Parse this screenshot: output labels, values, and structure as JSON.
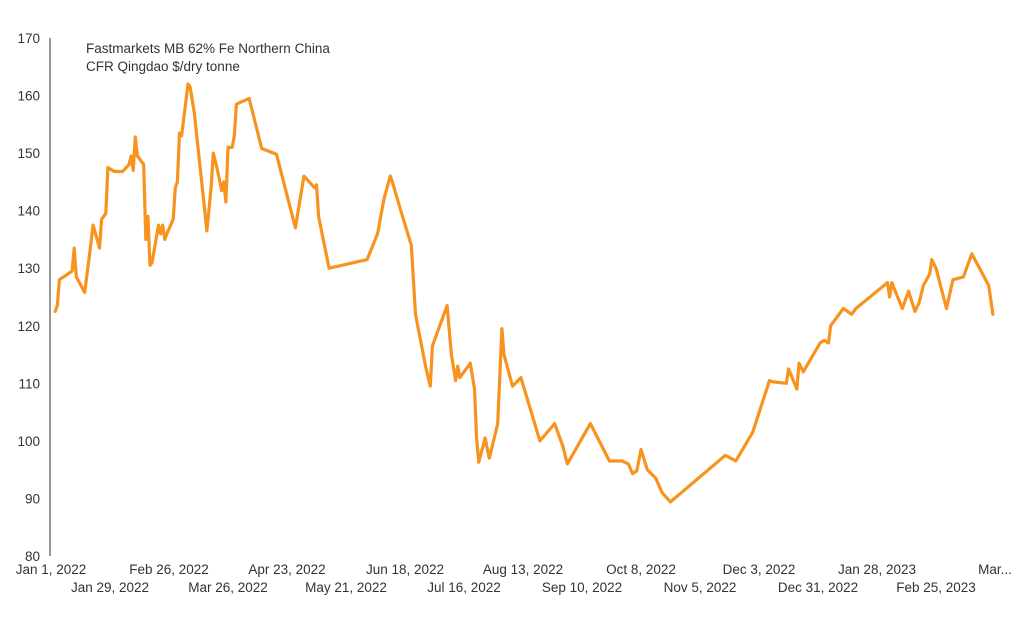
{
  "chart_data": {
    "type": "line",
    "title": "",
    "xlabel": "",
    "ylabel": "",
    "ylim": [
      80,
      170
    ],
    "yticks": [
      80,
      90,
      100,
      110,
      120,
      130,
      140,
      150,
      160,
      170
    ],
    "xlim": [
      "2022-01-01",
      "2023-03-25"
    ],
    "grid": false,
    "legend": {
      "position": "top-left",
      "line1": "Fastmarkets MB 62% Fe Northern China",
      "line2": "CFR Qingdao $/dry tonne"
    },
    "xtick_labels": [
      {
        "date": "2022-01-01",
        "label": "Jan 1, 2022"
      },
      {
        "date": "2022-01-29",
        "label": "Jan 29, 2022"
      },
      {
        "date": "2022-02-26",
        "label": "Feb 26, 2022"
      },
      {
        "date": "2022-03-26",
        "label": "Mar 26, 2022"
      },
      {
        "date": "2022-04-23",
        "label": "Apr 23, 2022"
      },
      {
        "date": "2022-05-21",
        "label": "May 21, 2022"
      },
      {
        "date": "2022-06-18",
        "label": "Jun 18, 2022"
      },
      {
        "date": "2022-07-16",
        "label": "Jul 16, 2022"
      },
      {
        "date": "2022-08-13",
        "label": "Aug 13, 2022"
      },
      {
        "date": "2022-09-10",
        "label": "Sep 10, 2022"
      },
      {
        "date": "2022-10-08",
        "label": "Oct 8, 2022"
      },
      {
        "date": "2022-11-05",
        "label": "Nov 5, 2022"
      },
      {
        "date": "2022-12-03",
        "label": "Dec 3, 2022"
      },
      {
        "date": "2022-12-31",
        "label": "Dec 31, 2022"
      },
      {
        "date": "2023-01-28",
        "label": "Jan 28, 2023"
      },
      {
        "date": "2023-02-25",
        "label": "Feb 25, 2023"
      },
      {
        "date": "2023-03-25",
        "label": "Mar..."
      }
    ],
    "series": [
      {
        "name": "Fastmarkets MB 62% Fe Northern China CFR Qingdao $/dry tonne",
        "color": "#f7931e",
        "points": [
          [
            "2022-01-03",
            122.5
          ],
          [
            "2022-01-04",
            123.5
          ],
          [
            "2022-01-05",
            128.0
          ],
          [
            "2022-01-09",
            129.0
          ],
          [
            "2022-01-11",
            129.5
          ],
          [
            "2022-01-12",
            133.5
          ],
          [
            "2022-01-13",
            128.5
          ],
          [
            "2022-01-17",
            125.8
          ],
          [
            "2022-01-19",
            131.5
          ],
          [
            "2022-01-21",
            137.5
          ],
          [
            "2022-01-24",
            133.5
          ],
          [
            "2022-01-25",
            138.5
          ],
          [
            "2022-01-27",
            139.5
          ],
          [
            "2022-01-28",
            147.5
          ],
          [
            "2022-01-31",
            146.8
          ],
          [
            "2022-02-04",
            146.8
          ],
          [
            "2022-02-07",
            148.0
          ],
          [
            "2022-02-08",
            149.5
          ],
          [
            "2022-02-09",
            147.0
          ],
          [
            "2022-02-10",
            152.8
          ],
          [
            "2022-02-11",
            149.5
          ],
          [
            "2022-02-14",
            148.0
          ],
          [
            "2022-02-15",
            135.0
          ],
          [
            "2022-02-16",
            139.0
          ],
          [
            "2022-02-17",
            130.5
          ],
          [
            "2022-02-18",
            131.0
          ],
          [
            "2022-02-21",
            137.5
          ],
          [
            "2022-02-22",
            136.0
          ],
          [
            "2022-02-23",
            137.5
          ],
          [
            "2022-02-24",
            135.0
          ],
          [
            "2022-02-25",
            136.0
          ],
          [
            "2022-02-28",
            138.5
          ],
          [
            "2022-03-01",
            144.0
          ],
          [
            "2022-03-02",
            145.0
          ],
          [
            "2022-03-03",
            153.5
          ],
          [
            "2022-03-04",
            153.0
          ],
          [
            "2022-03-07",
            162.0
          ],
          [
            "2022-03-08",
            161.5
          ],
          [
            "2022-03-10",
            157.0
          ],
          [
            "2022-03-16",
            136.5
          ],
          [
            "2022-03-18",
            144.0
          ],
          [
            "2022-03-19",
            150.0
          ],
          [
            "2022-03-21",
            147.0
          ],
          [
            "2022-03-23",
            143.5
          ],
          [
            "2022-03-24",
            145.0
          ],
          [
            "2022-03-25",
            141.5
          ],
          [
            "2022-03-26",
            151.0
          ],
          [
            "2022-03-28",
            151.0
          ],
          [
            "2022-03-29",
            153.0
          ],
          [
            "2022-03-30",
            158.5
          ],
          [
            "2022-04-05",
            159.5
          ],
          [
            "2022-04-11",
            150.8
          ],
          [
            "2022-04-18",
            149.8
          ],
          [
            "2022-04-27",
            137.0
          ],
          [
            "2022-05-01",
            146.0
          ],
          [
            "2022-05-06",
            144.0
          ],
          [
            "2022-05-07",
            144.5
          ],
          [
            "2022-05-08",
            139.0
          ],
          [
            "2022-05-13",
            130.0
          ],
          [
            "2022-05-31",
            131.5
          ],
          [
            "2022-06-05",
            136.0
          ],
          [
            "2022-06-08",
            142.0
          ],
          [
            "2022-06-11",
            146.0
          ],
          [
            "2022-06-12",
            145.0
          ],
          [
            "2022-06-16",
            140.0
          ],
          [
            "2022-06-21",
            134.0
          ],
          [
            "2022-06-23",
            122.0
          ],
          [
            "2022-06-28",
            112.5
          ],
          [
            "2022-06-30",
            109.5
          ],
          [
            "2022-07-01",
            116.5
          ],
          [
            "2022-07-08",
            123.5
          ],
          [
            "2022-07-10",
            115.0
          ],
          [
            "2022-07-12",
            110.5
          ],
          [
            "2022-07-13",
            113.0
          ],
          [
            "2022-07-14",
            111.0
          ],
          [
            "2022-07-19",
            113.5
          ],
          [
            "2022-07-21",
            109.0
          ],
          [
            "2022-07-22",
            100.5
          ],
          [
            "2022-07-23",
            96.3
          ],
          [
            "2022-07-26",
            100.5
          ],
          [
            "2022-07-28",
            97.0
          ],
          [
            "2022-08-01",
            103.0
          ],
          [
            "2022-08-03",
            119.5
          ],
          [
            "2022-08-04",
            115.0
          ],
          [
            "2022-08-08",
            109.5
          ],
          [
            "2022-08-12",
            111.0
          ],
          [
            "2022-08-21",
            100.0
          ],
          [
            "2022-08-28",
            103.0
          ],
          [
            "2022-09-01",
            99.0
          ],
          [
            "2022-09-03",
            96.0
          ],
          [
            "2022-09-14",
            103.0
          ],
          [
            "2022-09-23",
            96.5
          ],
          [
            "2022-09-29",
            96.5
          ],
          [
            "2022-10-02",
            96.0
          ],
          [
            "2022-10-04",
            94.3
          ],
          [
            "2022-10-06",
            94.8
          ],
          [
            "2022-10-08",
            98.5
          ],
          [
            "2022-10-11",
            95.0
          ],
          [
            "2022-10-15",
            93.5
          ],
          [
            "2022-10-18",
            91.0
          ],
          [
            "2022-10-22",
            89.4
          ],
          [
            "2022-11-17",
            97.5
          ],
          [
            "2022-11-22",
            96.5
          ],
          [
            "2022-11-30",
            101.5
          ],
          [
            "2022-12-08",
            110.5
          ],
          [
            "2022-12-09",
            110.3
          ],
          [
            "2022-12-16",
            110.0
          ],
          [
            "2022-12-17",
            112.5
          ],
          [
            "2022-12-21",
            109.0
          ],
          [
            "2022-12-22",
            113.5
          ],
          [
            "2022-12-24",
            112.0
          ],
          [
            "2023-01-01",
            117.0
          ],
          [
            "2023-01-03",
            117.5
          ],
          [
            "2023-01-05",
            117.0
          ],
          [
            "2023-01-06",
            120.0
          ],
          [
            "2023-01-12",
            123.0
          ],
          [
            "2023-01-16",
            122.0
          ],
          [
            "2023-01-18",
            123.0
          ],
          [
            "2023-02-02",
            127.5
          ],
          [
            "2023-02-03",
            125.0
          ],
          [
            "2023-02-04",
            127.5
          ],
          [
            "2023-02-09",
            123.0
          ],
          [
            "2023-02-12",
            126.0
          ],
          [
            "2023-02-15",
            122.5
          ],
          [
            "2023-02-17",
            124.0
          ],
          [
            "2023-02-19",
            127.0
          ],
          [
            "2023-02-22",
            129.0
          ],
          [
            "2023-02-23",
            131.5
          ],
          [
            "2023-02-25",
            130.0
          ],
          [
            "2023-03-02",
            123.0
          ],
          [
            "2023-03-05",
            128.0
          ],
          [
            "2023-03-10",
            128.5
          ],
          [
            "2023-03-14",
            132.5
          ],
          [
            "2023-03-22",
            127.0
          ],
          [
            "2023-03-24",
            122.0
          ]
        ]
      }
    ]
  }
}
